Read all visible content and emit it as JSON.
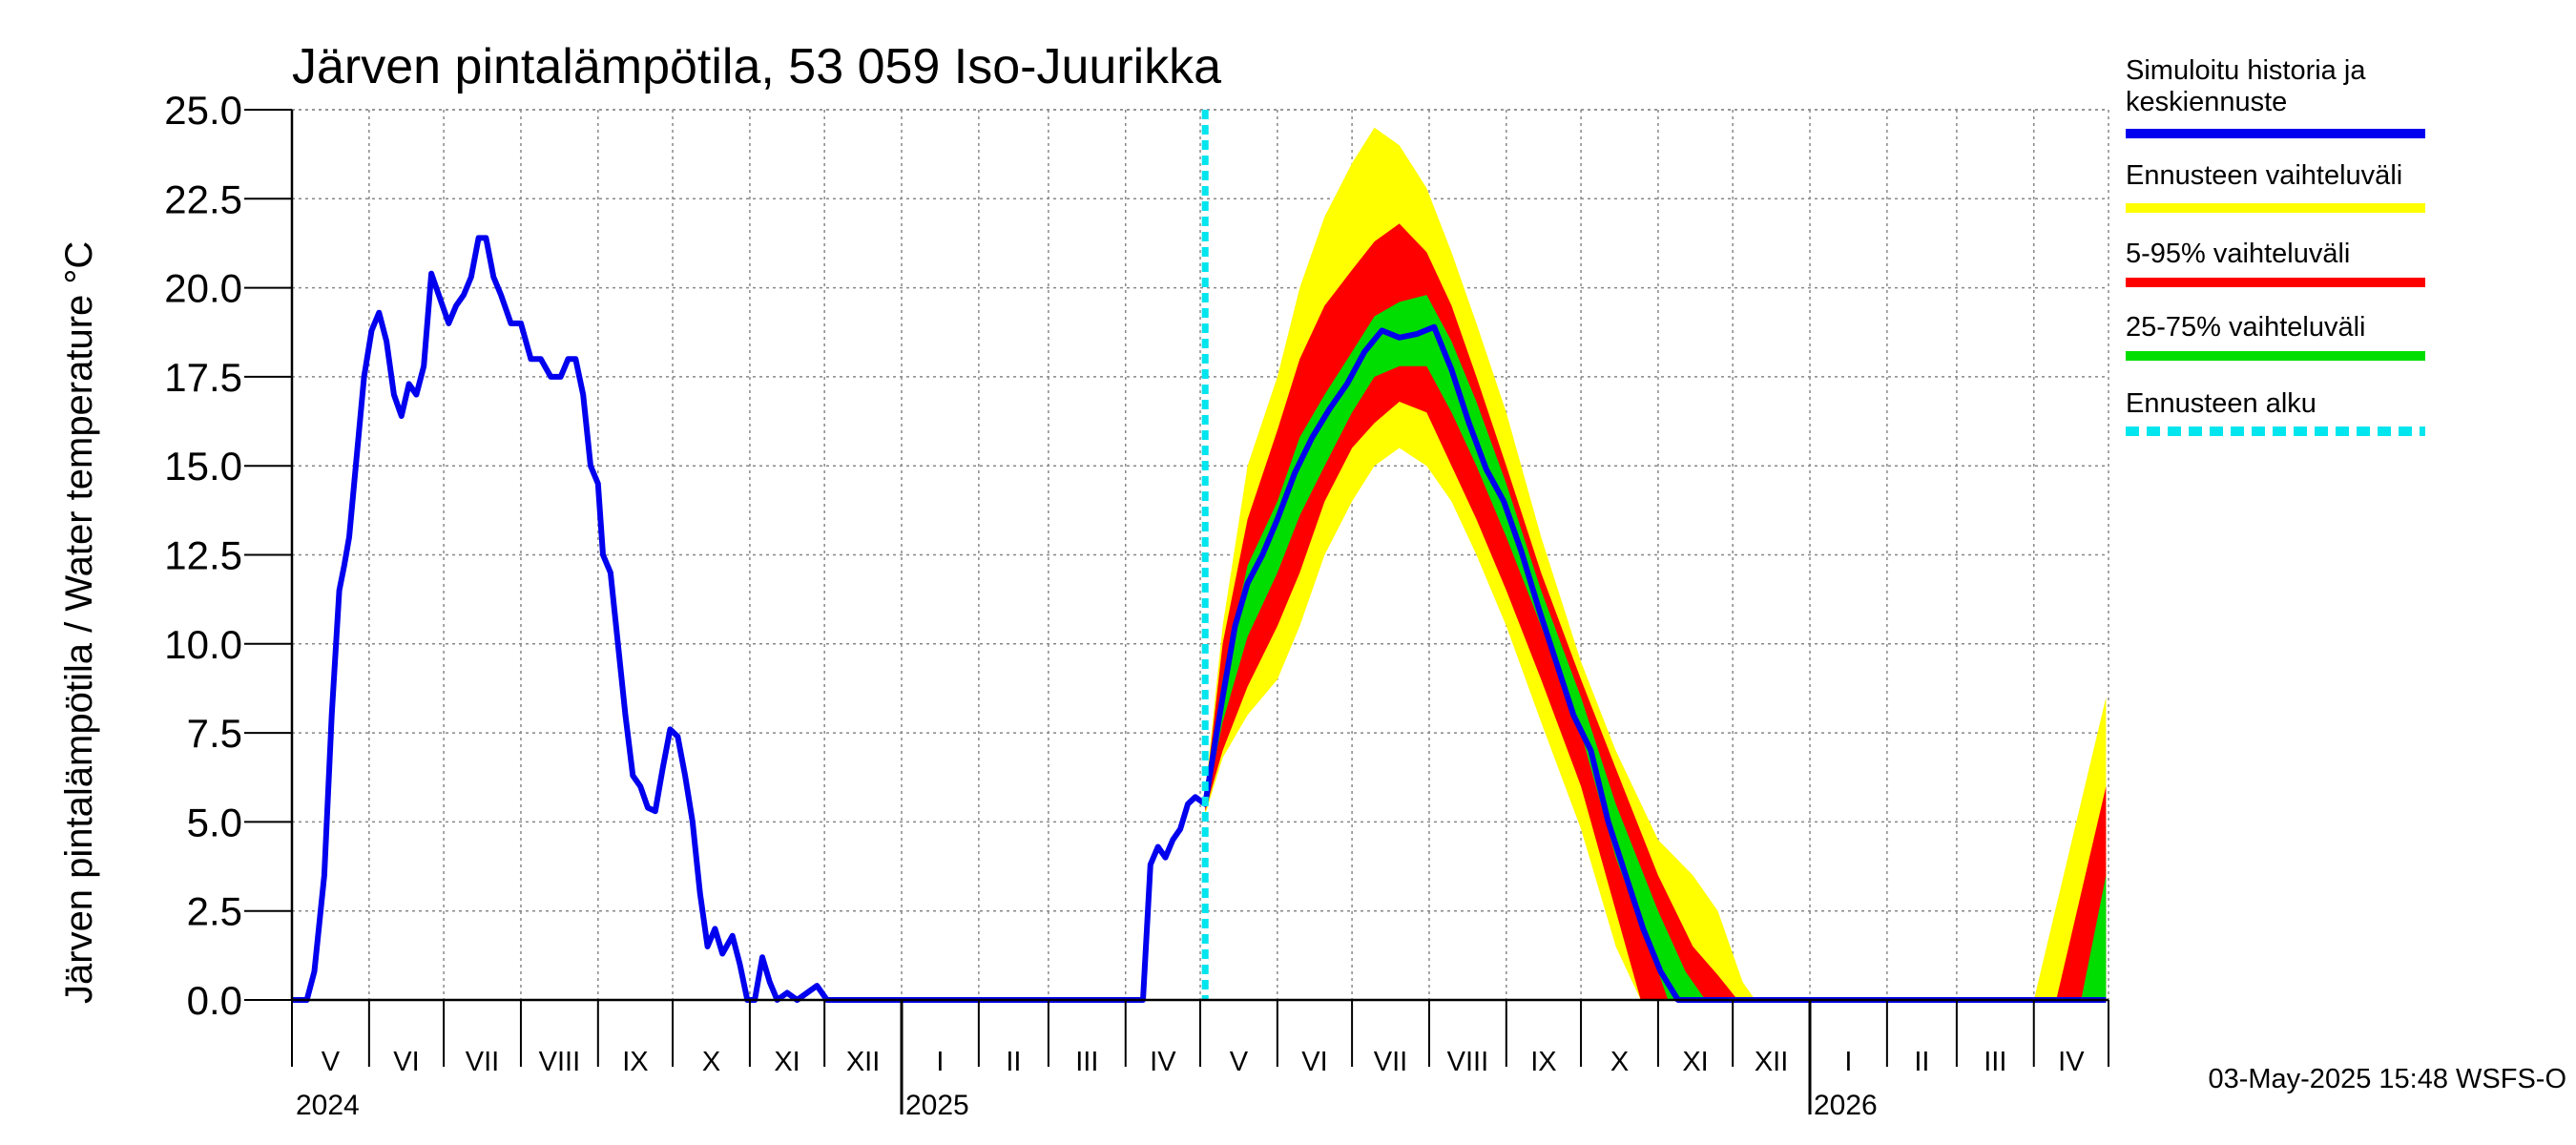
{
  "chart_data": {
    "type": "line",
    "title": "Järven pintalämpötila, 53 059 Iso-Juurikka",
    "ylabel": "Järven pintalämpötila / Water temperature °C",
    "xlabel": "",
    "ylim": [
      0,
      25
    ],
    "xlim": [
      "2024-05-01",
      "2026-05-01"
    ],
    "yticks": [
      "0.0",
      "2.5",
      "5.0",
      "7.5",
      "10.0",
      "12.5",
      "15.0",
      "17.5",
      "20.0",
      "22.5",
      "25.0"
    ],
    "month_labels": [
      "V",
      "VI",
      "VII",
      "VIII",
      "IX",
      "X",
      "XI",
      "XII",
      "I",
      "II",
      "III",
      "IV",
      "V",
      "VI",
      "VII",
      "VIII",
      "IX",
      "X",
      "XI",
      "XII",
      "I",
      "II",
      "III",
      "IV"
    ],
    "year_labels": [
      "2024",
      "2025",
      "2026"
    ],
    "forecast_start": "2025-05-03",
    "grid": true,
    "legend_position": "right",
    "legend": [
      {
        "label": "Simuloitu historia ja keskiennuste",
        "color": "#0000ee",
        "style": "solid"
      },
      {
        "label": "Ennusteen vaihteluväli",
        "color": "#ffff00",
        "style": "solid"
      },
      {
        "label": "5-95% vaihteluväli",
        "color": "#ff0000",
        "style": "solid"
      },
      {
        "label": "25-75% vaihteluväli",
        "color": "#00dd00",
        "style": "solid"
      },
      {
        "label": "Ennusteen alku",
        "color": "#00e5ee",
        "style": "dashed"
      }
    ],
    "series": [
      {
        "name": "Simuloitu historia ja keskiennuste",
        "points": [
          [
            "2024-05-01",
            0
          ],
          [
            "2024-05-07",
            0
          ],
          [
            "2024-05-10",
            0.8
          ],
          [
            "2024-05-14",
            3.5
          ],
          [
            "2024-05-17",
            8
          ],
          [
            "2024-05-20",
            11.5
          ],
          [
            "2024-05-22",
            12.2
          ],
          [
            "2024-05-24",
            13
          ],
          [
            "2024-05-26",
            14.5
          ],
          [
            "2024-05-28",
            16
          ],
          [
            "2024-05-30",
            17.5
          ],
          [
            "2024-06-02",
            18.8
          ],
          [
            "2024-06-05",
            19.3
          ],
          [
            "2024-06-08",
            18.5
          ],
          [
            "2024-06-11",
            17
          ],
          [
            "2024-06-14",
            16.4
          ],
          [
            "2024-06-17",
            17.3
          ],
          [
            "2024-06-20",
            17
          ],
          [
            "2024-06-23",
            17.8
          ],
          [
            "2024-06-26",
            20.4
          ],
          [
            "2024-06-29",
            19.8
          ],
          [
            "2024-07-03",
            19
          ],
          [
            "2024-07-06",
            19.5
          ],
          [
            "2024-07-09",
            19.8
          ],
          [
            "2024-07-12",
            20.3
          ],
          [
            "2024-07-15",
            21.4
          ],
          [
            "2024-07-18",
            21.4
          ],
          [
            "2024-07-21",
            20.3
          ],
          [
            "2024-07-24",
            19.8
          ],
          [
            "2024-07-28",
            19
          ],
          [
            "2024-08-01",
            19
          ],
          [
            "2024-08-05",
            18
          ],
          [
            "2024-08-09",
            18
          ],
          [
            "2024-08-13",
            17.5
          ],
          [
            "2024-08-17",
            17.5
          ],
          [
            "2024-08-20",
            18
          ],
          [
            "2024-08-23",
            18
          ],
          [
            "2024-08-26",
            17
          ],
          [
            "2024-08-29",
            15
          ],
          [
            "2024-09-01",
            14.5
          ],
          [
            "2024-09-03",
            12.5
          ],
          [
            "2024-09-06",
            12
          ],
          [
            "2024-09-09",
            10
          ],
          [
            "2024-09-12",
            8
          ],
          [
            "2024-09-15",
            6.3
          ],
          [
            "2024-09-18",
            6
          ],
          [
            "2024-09-21",
            5.4
          ],
          [
            "2024-09-24",
            5.3
          ],
          [
            "2024-09-27",
            6.5
          ],
          [
            "2024-09-30",
            7.6
          ],
          [
            "2024-10-03",
            7.4
          ],
          [
            "2024-10-06",
            6.3
          ],
          [
            "2024-10-09",
            5
          ],
          [
            "2024-10-12",
            3
          ],
          [
            "2024-10-15",
            1.5
          ],
          [
            "2024-10-18",
            2
          ],
          [
            "2024-10-21",
            1.3
          ],
          [
            "2024-10-25",
            1.8
          ],
          [
            "2024-10-28",
            1
          ],
          [
            "2024-10-31",
            0
          ],
          [
            "2024-11-03",
            0
          ],
          [
            "2024-11-06",
            1.2
          ],
          [
            "2024-11-09",
            0.5
          ],
          [
            "2024-11-12",
            0
          ],
          [
            "2024-11-16",
            0.2
          ],
          [
            "2024-11-20",
            0
          ],
          [
            "2024-11-28",
            0.4
          ],
          [
            "2024-12-02",
            0
          ],
          [
            "2025-04-08",
            0
          ],
          [
            "2025-04-11",
            3.8
          ],
          [
            "2025-04-14",
            4.3
          ],
          [
            "2025-04-17",
            4
          ],
          [
            "2025-04-20",
            4.5
          ],
          [
            "2025-04-23",
            4.8
          ],
          [
            "2025-04-26",
            5.5
          ],
          [
            "2025-04-29",
            5.7
          ],
          [
            "2025-05-03",
            5.5
          ],
          [
            "2025-05-06",
            6.8
          ],
          [
            "2025-05-10",
            8.5
          ],
          [
            "2025-05-15",
            10.5
          ],
          [
            "2025-05-20",
            11.7
          ],
          [
            "2025-05-26",
            12.5
          ],
          [
            "2025-06-01",
            13.5
          ],
          [
            "2025-06-08",
            14.8
          ],
          [
            "2025-06-15",
            15.8
          ],
          [
            "2025-06-22",
            16.6
          ],
          [
            "2025-06-29",
            17.3
          ],
          [
            "2025-07-06",
            18.2
          ],
          [
            "2025-07-13",
            18.8
          ],
          [
            "2025-07-20",
            18.6
          ],
          [
            "2025-07-27",
            18.7
          ],
          [
            "2025-08-03",
            18.9
          ],
          [
            "2025-08-10",
            17.7
          ],
          [
            "2025-08-17",
            16.2
          ],
          [
            "2025-08-24",
            14.9
          ],
          [
            "2025-08-31",
            14
          ],
          [
            "2025-09-07",
            12.6
          ],
          [
            "2025-09-14",
            11
          ],
          [
            "2025-09-21",
            9.5
          ],
          [
            "2025-09-28",
            8
          ],
          [
            "2025-10-05",
            7
          ],
          [
            "2025-10-12",
            5
          ],
          [
            "2025-10-19",
            3.5
          ],
          [
            "2025-10-26",
            2
          ],
          [
            "2025-11-02",
            0.8
          ],
          [
            "2025-11-09",
            0
          ],
          [
            "2026-04-30",
            0
          ]
        ]
      },
      {
        "name": "Ennusteen vaihteluväli",
        "band": true,
        "upper": [
          [
            "2025-05-03",
            5.8
          ],
          [
            "2025-05-10",
            10.5
          ],
          [
            "2025-05-20",
            15
          ],
          [
            "2025-06-01",
            17.5
          ],
          [
            "2025-06-10",
            20
          ],
          [
            "2025-06-20",
            22
          ],
          [
            "2025-07-01",
            23.5
          ],
          [
            "2025-07-10",
            24.5
          ],
          [
            "2025-07-20",
            24
          ],
          [
            "2025-07-31",
            22.8
          ],
          [
            "2025-08-10",
            21
          ],
          [
            "2025-08-20",
            19
          ],
          [
            "2025-09-01",
            16.5
          ],
          [
            "2025-09-15",
            13
          ],
          [
            "2025-10-01",
            9.5
          ],
          [
            "2025-10-15",
            7
          ],
          [
            "2025-11-01",
            4.5
          ],
          [
            "2025-11-15",
            3.5
          ],
          [
            "2025-11-25",
            2.5
          ],
          [
            "2025-12-05",
            0.5
          ],
          [
            "2025-12-10",
            0
          ],
          [
            "2026-04-01",
            0
          ],
          [
            "2026-04-30",
            8.5
          ]
        ],
        "lower": [
          [
            "2025-05-03",
            5.2
          ],
          [
            "2025-05-10",
            6.8
          ],
          [
            "2025-05-20",
            8
          ],
          [
            "2025-06-01",
            9
          ],
          [
            "2025-06-10",
            10.5
          ],
          [
            "2025-06-20",
            12.5
          ],
          [
            "2025-07-01",
            14
          ],
          [
            "2025-07-10",
            15
          ],
          [
            "2025-07-20",
            15.5
          ],
          [
            "2025-07-31",
            15
          ],
          [
            "2025-08-10",
            14
          ],
          [
            "2025-08-20",
            12.5
          ],
          [
            "2025-09-01",
            10.5
          ],
          [
            "2025-09-15",
            7.8
          ],
          [
            "2025-10-01",
            4.8
          ],
          [
            "2025-10-15",
            1.5
          ],
          [
            "2025-10-25",
            0
          ],
          [
            "2026-04-30",
            0
          ]
        ]
      },
      {
        "name": "5-95% vaihteluväli",
        "band": true,
        "upper": [
          [
            "2025-05-03",
            5.7
          ],
          [
            "2025-05-10",
            10
          ],
          [
            "2025-05-20",
            13.5
          ],
          [
            "2025-06-01",
            16
          ],
          [
            "2025-06-10",
            18
          ],
          [
            "2025-06-20",
            19.5
          ],
          [
            "2025-07-01",
            20.5
          ],
          [
            "2025-07-10",
            21.3
          ],
          [
            "2025-07-20",
            21.8
          ],
          [
            "2025-07-31",
            21
          ],
          [
            "2025-08-10",
            19.5
          ],
          [
            "2025-08-20",
            17.5
          ],
          [
            "2025-09-01",
            15
          ],
          [
            "2025-09-15",
            12
          ],
          [
            "2025-10-01",
            9
          ],
          [
            "2025-10-15",
            6.5
          ],
          [
            "2025-11-01",
            3.5
          ],
          [
            "2025-11-15",
            1.5
          ],
          [
            "2025-11-25",
            0.7
          ],
          [
            "2025-12-03",
            0
          ],
          [
            "2026-04-10",
            0
          ],
          [
            "2026-04-30",
            6
          ]
        ],
        "lower": [
          [
            "2025-05-03",
            5.3
          ],
          [
            "2025-05-10",
            7
          ],
          [
            "2025-05-20",
            8.8
          ],
          [
            "2025-06-01",
            10.5
          ],
          [
            "2025-06-10",
            12
          ],
          [
            "2025-06-20",
            14
          ],
          [
            "2025-07-01",
            15.5
          ],
          [
            "2025-07-10",
            16.2
          ],
          [
            "2025-07-20",
            16.8
          ],
          [
            "2025-07-31",
            16.5
          ],
          [
            "2025-08-10",
            15
          ],
          [
            "2025-08-20",
            13.5
          ],
          [
            "2025-09-01",
            11.5
          ],
          [
            "2025-09-15",
            9
          ],
          [
            "2025-10-01",
            6
          ],
          [
            "2025-10-15",
            2.5
          ],
          [
            "2025-10-25",
            0
          ],
          [
            "2026-04-30",
            0
          ]
        ]
      },
      {
        "name": "25-75% vaihteluväli",
        "band": true,
        "upper": [
          [
            "2025-05-03",
            5.6
          ],
          [
            "2025-05-10",
            9
          ],
          [
            "2025-05-20",
            12.2
          ],
          [
            "2025-06-01",
            14
          ],
          [
            "2025-06-10",
            15.8
          ],
          [
            "2025-06-20",
            17
          ],
          [
            "2025-07-01",
            18.2
          ],
          [
            "2025-07-10",
            19.2
          ],
          [
            "2025-07-20",
            19.6
          ],
          [
            "2025-07-31",
            19.8
          ],
          [
            "2025-08-10",
            18.5
          ],
          [
            "2025-08-20",
            16.8
          ],
          [
            "2025-09-01",
            14.5
          ],
          [
            "2025-09-15",
            11.5
          ],
          [
            "2025-10-01",
            8.5
          ],
          [
            "2025-10-15",
            5.5
          ],
          [
            "2025-11-01",
            2.5
          ],
          [
            "2025-11-12",
            0.8
          ],
          [
            "2025-11-20",
            0
          ],
          [
            "2026-04-20",
            0
          ],
          [
            "2026-04-30",
            3.5
          ]
        ],
        "lower": [
          [
            "2025-05-03",
            5.4
          ],
          [
            "2025-05-10",
            7.8
          ],
          [
            "2025-05-20",
            10.2
          ],
          [
            "2025-06-01",
            12
          ],
          [
            "2025-06-10",
            13.6
          ],
          [
            "2025-06-20",
            15
          ],
          [
            "2025-07-01",
            16.5
          ],
          [
            "2025-07-10",
            17.5
          ],
          [
            "2025-07-20",
            17.8
          ],
          [
            "2025-07-31",
            17.8
          ],
          [
            "2025-08-10",
            16.5
          ],
          [
            "2025-08-20",
            15
          ],
          [
            "2025-09-01",
            13
          ],
          [
            "2025-09-15",
            10.5
          ],
          [
            "2025-10-01",
            7.5
          ],
          [
            "2025-10-15",
            4
          ],
          [
            "2025-11-01",
            0.8
          ],
          [
            "2025-11-05",
            0
          ],
          [
            "2026-04-30",
            0
          ]
        ]
      }
    ]
  },
  "footer": "03-May-2025 15:48 WSFS-O"
}
